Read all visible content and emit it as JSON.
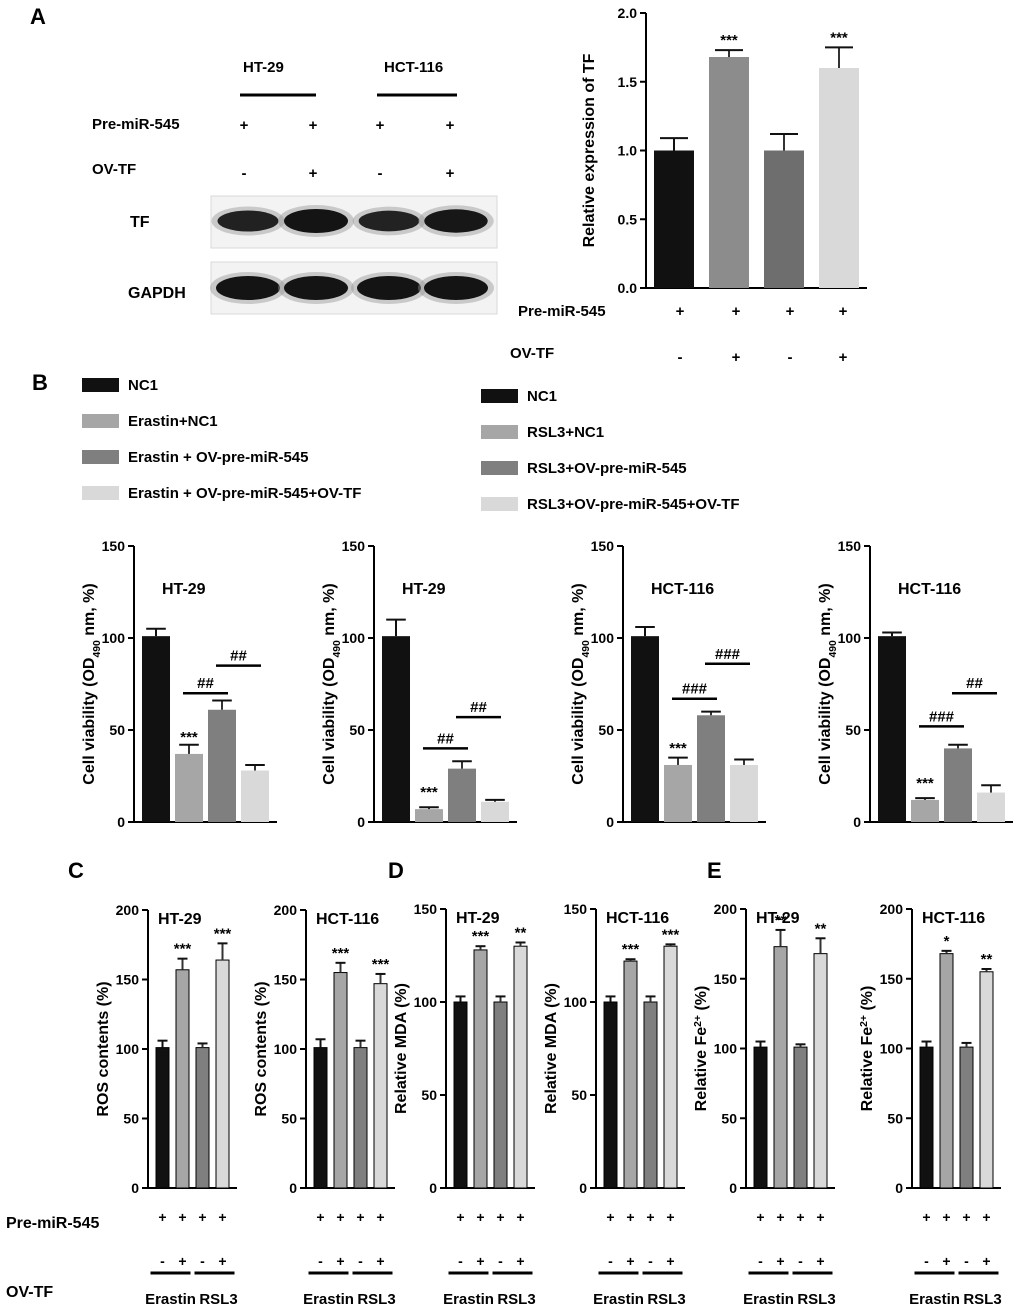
{
  "panel_labels": {
    "A": "A",
    "B": "B",
    "C": "C",
    "D": "D",
    "E": "E"
  },
  "colors": {
    "black": "#111111",
    "light_gray": "#a6a6a6",
    "dark_gray": "#7f7f7f",
    "pale_gray": "#d9d9d9"
  },
  "blot": {
    "cell_lines": [
      "HT-29",
      "HCT-116"
    ],
    "row_labels": {
      "pre": "Pre-miR-545",
      "ov": "OV-TF",
      "tf": "TF",
      "gapdh": "GAPDH"
    },
    "pre_signs": [
      "+",
      "+",
      "+",
      "+"
    ],
    "ov_signs": [
      "-",
      "+",
      "-",
      "+"
    ],
    "tf_band_intensity": [
      0.75,
      1.0,
      0.72,
      0.95
    ],
    "gapdh_band_intensity": [
      1.0,
      1.0,
      1.0,
      1.0
    ]
  },
  "legends": {
    "erastin": [
      "NC1",
      "Erastin+NC1",
      "Erastin + OV-pre-miR-545",
      "Erastin + OV-pre-miR-545+OV-TF"
    ],
    "rsl3": [
      "NC1",
      "RSL3+NC1",
      "RSL3+OV-pre-miR-545",
      "RSL3+OV-pre-miR-545+OV-TF"
    ]
  },
  "condition_rows": {
    "pre_label": "Pre-miR-545",
    "ov_label": "OV-TF",
    "pre_signs": [
      "+",
      "+",
      "+",
      "+"
    ],
    "ov_signs": [
      "-",
      "+",
      "-",
      "+"
    ],
    "group_labels": [
      "Erastin",
      "RSL3"
    ]
  },
  "chart_data": [
    {
      "id": "A",
      "type": "bar",
      "title": "",
      "ylabel": "Relative expression of TF",
      "ylim": [
        0,
        2.0
      ],
      "yticks": [
        "0.0",
        "0.5",
        "1.0",
        "1.5",
        "2.0"
      ],
      "values": [
        1.0,
        1.68,
        1.0,
        1.6
      ],
      "errors": [
        0.09,
        0.05,
        0.12,
        0.15
      ],
      "bar_colors": [
        "#111111",
        "#8c8c8c",
        "#6e6e6e",
        "#d9d9d9"
      ],
      "marks": [
        "",
        "***",
        "",
        "***"
      ]
    },
    {
      "id": "B1",
      "type": "bar",
      "title": "HT-29",
      "ylabel": "Cell viability (OD490 nm, %)",
      "ylim": [
        0,
        150
      ],
      "yticks": [
        "0",
        "50",
        "100",
        "150"
      ],
      "values": [
        101,
        37,
        61,
        28
      ],
      "errors": [
        4,
        5,
        5,
        3
      ],
      "bar_colors": [
        "#111111",
        "#a6a6a6",
        "#7f7f7f",
        "#d9d9d9"
      ],
      "marks": [
        "",
        "***",
        "",
        ""
      ],
      "brackets": [
        {
          "label": "##",
          "from": 1,
          "to": 2,
          "y": 70
        },
        {
          "label": "##",
          "from": 2,
          "to": 3,
          "y": 85
        }
      ]
    },
    {
      "id": "B2",
      "type": "bar",
      "title": "HT-29",
      "ylabel": "Cell viability (OD490 nm, %)",
      "ylim": [
        0,
        150
      ],
      "yticks": [
        "0",
        "50",
        "100",
        "150"
      ],
      "values": [
        101,
        7,
        29,
        11
      ],
      "errors": [
        9,
        1,
        4,
        1
      ],
      "bar_colors": [
        "#111111",
        "#a6a6a6",
        "#7f7f7f",
        "#d9d9d9"
      ],
      "marks": [
        "",
        "***",
        "",
        ""
      ],
      "brackets": [
        {
          "label": "##",
          "from": 1,
          "to": 2,
          "y": 40
        },
        {
          "label": "##",
          "from": 2,
          "to": 3,
          "y": 57
        }
      ]
    },
    {
      "id": "B3",
      "type": "bar",
      "title": "HCT-116",
      "ylabel": "Cell viability (OD490 nm, %)",
      "ylim": [
        0,
        150
      ],
      "yticks": [
        "0",
        "50",
        "100",
        "150"
      ],
      "values": [
        101,
        31,
        58,
        31
      ],
      "errors": [
        5,
        4,
        2,
        3
      ],
      "bar_colors": [
        "#111111",
        "#a6a6a6",
        "#7f7f7f",
        "#d9d9d9"
      ],
      "marks": [
        "",
        "***",
        "",
        ""
      ],
      "brackets": [
        {
          "label": "###",
          "from": 1,
          "to": 2,
          "y": 67
        },
        {
          "label": "###",
          "from": 2,
          "to": 3,
          "y": 86
        }
      ]
    },
    {
      "id": "B4",
      "type": "bar",
      "title": "HCT-116",
      "ylabel": "Cell viability (OD490 nm, %)",
      "ylim": [
        0,
        150
      ],
      "yticks": [
        "0",
        "50",
        "100",
        "150"
      ],
      "values": [
        101,
        12,
        40,
        16
      ],
      "errors": [
        2,
        1,
        2,
        4
      ],
      "bar_colors": [
        "#111111",
        "#a6a6a6",
        "#7f7f7f",
        "#d9d9d9"
      ],
      "marks": [
        "",
        "***",
        "",
        ""
      ],
      "brackets": [
        {
          "label": "###",
          "from": 1,
          "to": 2,
          "y": 52
        },
        {
          "label": "##",
          "from": 2,
          "to": 3,
          "y": 70
        }
      ]
    },
    {
      "id": "C1",
      "type": "bar",
      "title": "HT-29",
      "ylabel": "ROS contents (%)",
      "ylim": [
        0,
        200
      ],
      "yticks": [
        "0",
        "50",
        "100",
        "150",
        "200"
      ],
      "values": [
        101,
        157,
        101,
        164
      ],
      "errors": [
        5,
        8,
        3,
        12
      ],
      "bar_colors": [
        "#111111",
        "#a6a6a6",
        "#7f7f7f",
        "#d9d9d9"
      ],
      "marks": [
        "",
        "***",
        "",
        "***"
      ]
    },
    {
      "id": "C2",
      "type": "bar",
      "title": "HCT-116",
      "ylabel": "ROS contents (%)",
      "ylim": [
        0,
        200
      ],
      "yticks": [
        "0",
        "50",
        "100",
        "150",
        "200"
      ],
      "values": [
        101,
        155,
        101,
        147
      ],
      "errors": [
        6,
        7,
        5,
        7
      ],
      "bar_colors": [
        "#111111",
        "#a6a6a6",
        "#7f7f7f",
        "#d9d9d9"
      ],
      "marks": [
        "",
        "***",
        "",
        "***"
      ]
    },
    {
      "id": "D1",
      "type": "bar",
      "title": "HT-29",
      "ylabel": "Relative MDA (%)",
      "ylim": [
        0,
        150
      ],
      "yticks": [
        "0",
        "50",
        "100",
        "150"
      ],
      "values": [
        100,
        128,
        100,
        130
      ],
      "errors": [
        3,
        2,
        3,
        2
      ],
      "bar_colors": [
        "#111111",
        "#a6a6a6",
        "#7f7f7f",
        "#d9d9d9"
      ],
      "marks": [
        "",
        "***",
        "",
        "**"
      ]
    },
    {
      "id": "D2",
      "type": "bar",
      "title": "HCT-116",
      "ylabel": "Relative MDA (%)",
      "ylim": [
        0,
        150
      ],
      "yticks": [
        "0",
        "50",
        "100",
        "150"
      ],
      "values": [
        100,
        122,
        100,
        130
      ],
      "errors": [
        3,
        1,
        3,
        1
      ],
      "bar_colors": [
        "#111111",
        "#a6a6a6",
        "#7f7f7f",
        "#d9d9d9"
      ],
      "marks": [
        "",
        "***",
        "",
        "***"
      ]
    },
    {
      "id": "E1",
      "type": "bar",
      "title": "HT-29",
      "ylabel": "Relative Fe2+ (%)",
      "ylim": [
        0,
        200
      ],
      "yticks": [
        "0",
        "50",
        "100",
        "150",
        "200"
      ],
      "values": [
        101,
        173,
        101,
        168
      ],
      "errors": [
        4,
        12,
        2,
        11
      ],
      "bar_colors": [
        "#111111",
        "#a6a6a6",
        "#7f7f7f",
        "#d9d9d9"
      ],
      "marks": [
        "",
        "**",
        "",
        "**"
      ]
    },
    {
      "id": "E2",
      "type": "bar",
      "title": "HCT-116",
      "ylabel": "Relative Fe2+ (%)",
      "ylim": [
        0,
        200
      ],
      "yticks": [
        "0",
        "50",
        "100",
        "150",
        "200"
      ],
      "values": [
        101,
        168,
        101,
        155
      ],
      "errors": [
        4,
        2,
        3,
        2
      ],
      "bar_colors": [
        "#111111",
        "#a6a6a6",
        "#7f7f7f",
        "#d9d9d9"
      ],
      "marks": [
        "",
        "*",
        "",
        "**"
      ]
    }
  ]
}
